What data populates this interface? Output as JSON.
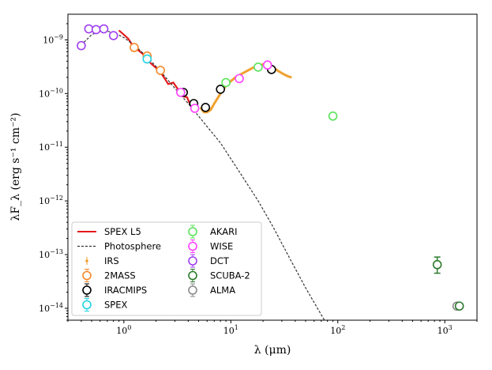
{
  "chart_data": {
    "type": "scatter",
    "x_scale": "log",
    "y_scale": "log",
    "xlim": [
      0.3,
      2000
    ],
    "ylim": [
      6e-15,
      3e-09
    ],
    "xlabel": "λ (μm)",
    "ylabel": "λF_λ (erg s⁻¹ cm⁻²)",
    "x_ticks": [
      {
        "value": 1,
        "base": "10",
        "exp": "0"
      },
      {
        "value": 10,
        "base": "10",
        "exp": "1"
      },
      {
        "value": 100,
        "base": "10",
        "exp": "2"
      },
      {
        "value": 1000,
        "base": "10",
        "exp": "3"
      }
    ],
    "y_ticks": [
      {
        "value": 1e-14,
        "base": "10",
        "exp": "−14"
      },
      {
        "value": 1e-13,
        "base": "10",
        "exp": "−13"
      },
      {
        "value": 1e-12,
        "base": "10",
        "exp": "−12"
      },
      {
        "value": 1e-11,
        "base": "10",
        "exp": "−11"
      },
      {
        "value": 1e-10,
        "base": "10",
        "exp": "−10"
      },
      {
        "value": 1e-09,
        "base": "10",
        "exp": "−9"
      }
    ],
    "lines": [
      {
        "name": "SPEX L5",
        "color": "#e41a1c",
        "points": [
          [
            0.9,
            1.5e-09
          ],
          [
            1.0,
            1.25e-09
          ],
          [
            1.1,
            1.05e-09
          ],
          [
            1.2,
            8e-10
          ],
          [
            1.35,
            6.5e-10
          ],
          [
            1.5,
            5.5e-10
          ],
          [
            1.7,
            4e-10
          ],
          [
            2.0,
            3e-10
          ],
          [
            2.3,
            2.2e-10
          ],
          [
            2.5,
            1.7e-10
          ],
          [
            2.6,
            1.5e-10
          ],
          [
            2.9,
            1.6e-10
          ],
          [
            3.2,
            1.2e-10
          ],
          [
            3.5,
            9e-11
          ],
          [
            3.9,
            8.5e-11
          ],
          [
            4.2,
            6e-11
          ]
        ]
      },
      {
        "name": "Photosphere",
        "color": "#333333",
        "dashed": true,
        "points": [
          [
            0.4,
            8e-10
          ],
          [
            0.5,
            1.25e-09
          ],
          [
            0.6,
            1.45e-09
          ],
          [
            0.7,
            1.45e-09
          ],
          [
            0.85,
            1.3e-09
          ],
          [
            1.0,
            1.1e-09
          ],
          [
            1.3,
            7.5e-10
          ],
          [
            1.7,
            4.5e-10
          ],
          [
            2.2,
            2.6e-10
          ],
          [
            3.0,
            1.25e-10
          ],
          [
            4.0,
            6.5e-11
          ],
          [
            5.5,
            3e-11
          ],
          [
            8,
            1.2e-11
          ],
          [
            12,
            3.5e-12
          ],
          [
            18,
            1e-12
          ],
          [
            25,
            3.2e-13
          ],
          [
            35,
            9e-14
          ],
          [
            50,
            2.4e-14
          ],
          [
            75,
            6e-15
          ]
        ]
      },
      {
        "name": "IRS",
        "color": "#f0a030",
        "points": [
          [
            5.2,
            5.5e-11
          ],
          [
            5.6,
            4.5e-11
          ],
          [
            6.0,
            4.5e-11
          ],
          [
            6.5,
            5e-11
          ],
          [
            7.0,
            6.5e-11
          ],
          [
            8.0,
            1e-10
          ],
          [
            9.0,
            1.4e-10
          ],
          [
            10,
            1.7e-10
          ],
          [
            11,
            2e-10
          ],
          [
            12,
            2.2e-10
          ],
          [
            14,
            2.6e-10
          ],
          [
            16,
            3e-10
          ],
          [
            18,
            3.3e-10
          ],
          [
            20,
            3.5e-10
          ],
          [
            23,
            3.3e-10
          ],
          [
            25,
            3e-10
          ],
          [
            28,
            2.6e-10
          ],
          [
            31,
            2.3e-10
          ],
          [
            34,
            2.1e-10
          ],
          [
            37,
            2e-10
          ]
        ]
      }
    ],
    "series": [
      {
        "name": "IRS",
        "color": "#f0a030",
        "marker": "dot",
        "points": []
      },
      {
        "name": "2MASS",
        "color": "#f5892a",
        "marker": "circle",
        "points": [
          [
            1.25,
            7.2e-10
          ],
          [
            1.65,
            5e-10
          ],
          [
            2.2,
            2.7e-10
          ]
        ]
      },
      {
        "name": "IRACMIPS",
        "color": "#000000",
        "marker": "circle",
        "points": [
          [
            3.6,
            1.05e-10
          ],
          [
            4.5,
            6.5e-11
          ],
          [
            5.8,
            5.5e-11
          ],
          [
            8.0,
            1.2e-10
          ],
          [
            24,
            2.8e-10
          ]
        ]
      },
      {
        "name": "SPEX",
        "color": "#22d3e6",
        "marker": "circle",
        "points": [
          [
            1.65,
            4.4e-10
          ]
        ]
      },
      {
        "name": "AKARI",
        "color": "#5be35b",
        "marker": "circle",
        "points": [
          [
            9,
            1.6e-10
          ],
          [
            18,
            3.1e-10
          ],
          [
            90,
            3.8e-11
          ]
        ]
      },
      {
        "name": "WISE",
        "color": "#ff40ff",
        "marker": "circle",
        "points": [
          [
            3.4,
            1.05e-10
          ],
          [
            4.6,
            5.3e-11
          ],
          [
            12,
            1.9e-10
          ],
          [
            22,
            3.4e-10
          ]
        ]
      },
      {
        "name": "DCT",
        "color": "#a040f0",
        "marker": "circle",
        "points": [
          [
            0.4,
            7.8e-10
          ],
          [
            0.47,
            1.6e-09
          ],
          [
            0.55,
            1.55e-09
          ],
          [
            0.65,
            1.6e-09
          ],
          [
            0.8,
            1.2e-09
          ]
        ]
      },
      {
        "name": "SCUBA-2",
        "color": "#2d7a2d",
        "marker": "circle",
        "points": [
          [
            850,
            6.5e-14
          ]
        ],
        "errorbars": [
          [
            4.5e-14,
            9e-14
          ]
        ]
      },
      {
        "name": "ALMA",
        "color": "#8a8a8a",
        "marker": "circle",
        "points": [
          [
            1300,
            1.1e-14
          ]
        ]
      }
    ],
    "extra_points": [
      {
        "series": "SCUBA-2",
        "x": 1300,
        "y": 1.1e-14
      }
    ],
    "legend": {
      "placement": "bottom-left",
      "col1": [
        "SPEX L5",
        "Photosphere",
        "IRS",
        "2MASS",
        "IRACMIPS",
        "SPEX"
      ],
      "col2": [
        "AKARI",
        "WISE",
        "DCT",
        "SCUBA-2",
        "ALMA"
      ]
    }
  }
}
